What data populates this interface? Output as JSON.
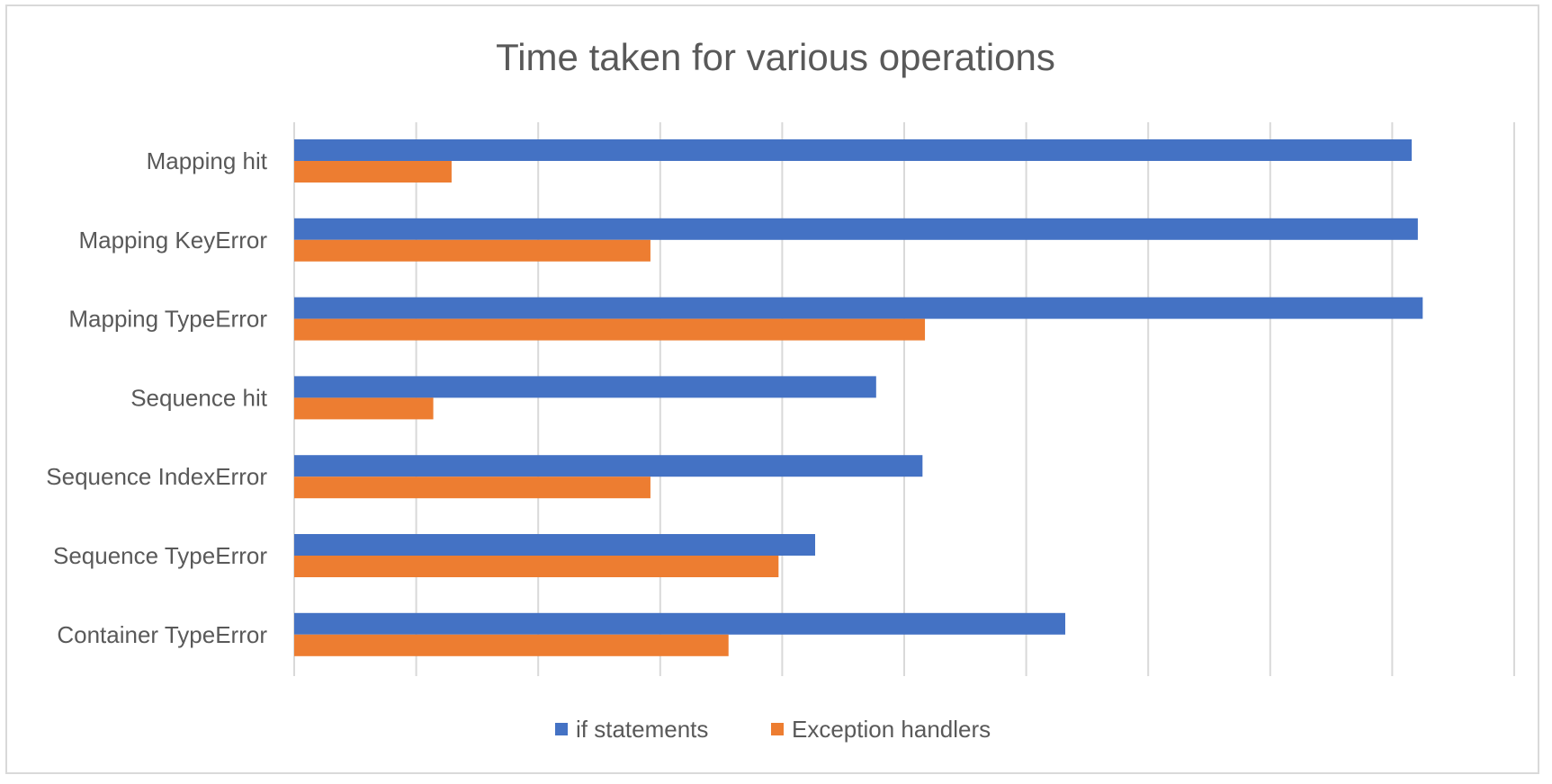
{
  "chart_data": {
    "type": "bar",
    "orientation": "horizontal",
    "title": "Time taken for various operations",
    "xlabel": "",
    "ylabel": "",
    "categories": [
      "Mapping hit",
      "Mapping KeyError",
      "Mapping TypeError",
      "Sequence hit",
      "Sequence IndexError",
      "Sequence TypeError",
      "Container TypeError"
    ],
    "series": [
      {
        "name": "if statements",
        "color": "#4472c4",
        "values": [
          9.16,
          9.21,
          9.25,
          4.77,
          5.15,
          4.27,
          6.32
        ]
      },
      {
        "name": "Exception handlers",
        "color": "#ed7d31",
        "values": [
          1.29,
          2.92,
          5.17,
          1.14,
          2.92,
          3.97,
          3.56
        ]
      }
    ],
    "xlim": [
      0,
      10
    ],
    "x_ticks_count": 11,
    "x_tick_labels_visible": false,
    "grid": true,
    "legend": "bottom"
  }
}
